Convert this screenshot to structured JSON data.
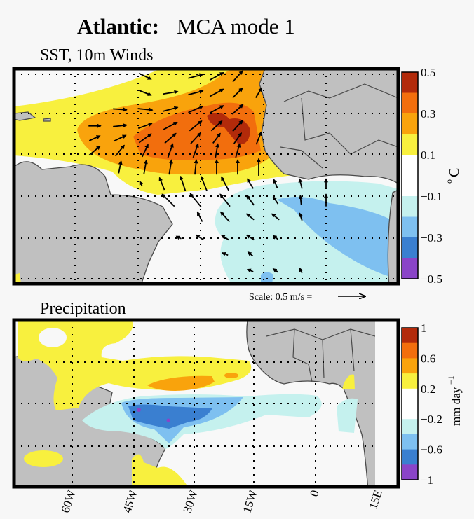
{
  "title": {
    "bold": "Atlantic:",
    "rest": "MCA mode 1"
  },
  "panels": {
    "top": {
      "label": "SST, 10m Winds"
    },
    "bottom": {
      "label": "Precipitation"
    }
  },
  "scale_text": "Scale: 0.5 m/s =",
  "x_ticks": [
    "60W",
    "45W",
    "30W",
    "15W",
    "0",
    "15E"
  ],
  "chart_data": {
    "type": "heatmap",
    "title": "Atlantic: MCA mode 1",
    "colors": [
      "#8a44c8",
      "#3a7fd0",
      "#7ec0f0",
      "#c5f1ee",
      "#ffffff",
      "#ffffff",
      "#f8f03e",
      "#f9a30c",
      "#f26e0d",
      "#b22a0a"
    ],
    "colorbars": [
      {
        "unit_base": "o",
        "unit": "C",
        "ticks": [
          "0.5",
          "0.3",
          "0.1",
          "−0.1",
          "−0.3",
          "−0.5"
        ],
        "range": [
          -0.5,
          0.5
        ]
      },
      {
        "unit_base": "mm day",
        "unit_sup": "−1",
        "ticks": [
          "1",
          "0.6",
          "0.2",
          "−0.2",
          "−0.6",
          "−1"
        ],
        "range": [
          -1,
          1
        ]
      }
    ],
    "wind_scale_ms": 0.5,
    "wind_vectors": [
      [
        -43,
        29,
        0.25,
        -0.12
      ],
      [
        -31,
        29,
        0.3,
        0.08
      ],
      [
        -26,
        29,
        0.28,
        0.15
      ],
      [
        -21,
        29,
        0.2,
        0.22
      ],
      [
        -43,
        25,
        0.25,
        -0.1
      ],
      [
        -37,
        25,
        0.3,
        0.05
      ],
      [
        -31,
        25,
        0.3,
        0.08
      ],
      [
        -26,
        25,
        0.28,
        0.15
      ],
      [
        -21,
        25,
        0.2,
        0.2
      ],
      [
        -16,
        25,
        0.12,
        0.2
      ],
      [
        -49,
        21,
        0.28,
        -0.02
      ],
      [
        -43,
        21,
        0.3,
        -0.03
      ],
      [
        -37,
        21,
        0.3,
        0.08
      ],
      [
        -31,
        21,
        0.3,
        0.13
      ],
      [
        -26,
        21,
        0.28,
        0.15
      ],
      [
        -21,
        21,
        0.22,
        0.2
      ],
      [
        -55,
        17,
        0.25,
        0
      ],
      [
        -49,
        17,
        0.28,
        0.03
      ],
      [
        -43,
        17,
        0.28,
        0.1
      ],
      [
        -37,
        17,
        0.28,
        0.15
      ],
      [
        -31,
        17,
        0.25,
        0.2
      ],
      [
        -26,
        17,
        0.22,
        0.2
      ],
      [
        -21,
        17,
        0.2,
        0.22
      ],
      [
        -55,
        14,
        0.22,
        0.1
      ],
      [
        -49,
        14,
        0.25,
        0.12
      ],
      [
        -43,
        14,
        0.25,
        0.18
      ],
      [
        -37,
        14,
        0.23,
        0.2
      ],
      [
        -31,
        14,
        0.2,
        0.22
      ],
      [
        -26,
        14,
        0.15,
        0.2
      ],
      [
        -21,
        14,
        0.15,
        0.22
      ],
      [
        -16,
        14,
        0.1,
        0.25
      ],
      [
        -55,
        11,
        0.22,
        0.18
      ],
      [
        -49,
        11,
        0.18,
        0.22
      ],
      [
        -43,
        11,
        0.12,
        0.25
      ],
      [
        -37,
        11,
        0.1,
        0.28
      ],
      [
        -31,
        11,
        0.1,
        0.28
      ],
      [
        -26,
        11,
        0.05,
        0.28
      ],
      [
        -21,
        11,
        0.08,
        0.28
      ],
      [
        -49,
        7,
        0.05,
        0.25
      ],
      [
        -43,
        7,
        0.05,
        0.28
      ],
      [
        -37,
        7,
        0.05,
        0.3
      ],
      [
        -31,
        7,
        0.03,
        0.3
      ],
      [
        -26,
        7,
        0,
        0.3
      ],
      [
        -21,
        7,
        0,
        0.3
      ],
      [
        -16,
        7,
        0,
        0.35
      ],
      [
        -44,
        3,
        -0.05,
        0.1
      ],
      [
        -39,
        3,
        -0.1,
        0.25
      ],
      [
        -34,
        3,
        -0.1,
        0.3
      ],
      [
        -29,
        3,
        -0.12,
        0.3
      ],
      [
        -24,
        3,
        -0.15,
        0.28
      ],
      [
        -18,
        3,
        -0.12,
        0.2
      ],
      [
        -12,
        3,
        -0.07,
        0.17
      ],
      [
        -6,
        3,
        -0.05,
        0.2
      ],
      [
        0,
        3,
        0,
        0.2
      ],
      [
        -37.5,
        -1,
        -0.25,
        0.25
      ],
      [
        -31,
        -1,
        -0.22,
        0.27
      ],
      [
        -24,
        -1,
        -0.2,
        0.25
      ],
      [
        -18,
        -1,
        -0.15,
        0.2
      ],
      [
        -12,
        -1,
        -0.1,
        0.15
      ],
      [
        -6,
        -1,
        -0.02,
        0.2
      ],
      [
        0,
        -1,
        0,
        0.25
      ],
      [
        -30,
        -5,
        -0.1,
        0.2
      ],
      [
        -24,
        -5,
        -0.18,
        0.2
      ],
      [
        -18,
        -5,
        -0.15,
        0.12
      ],
      [
        -12,
        -5,
        -0.15,
        0.12
      ],
      [
        -6,
        -5,
        -0.05,
        0.15
      ],
      [
        -35,
        -10,
        -0.1,
        0.05
      ],
      [
        -30,
        -10,
        -0.15,
        0.1
      ],
      [
        -24,
        -10,
        -0.15,
        0.1
      ],
      [
        -18,
        -10,
        -0.15,
        0.1
      ],
      [
        -12,
        -10,
        -0.1,
        0.08
      ],
      [
        -24,
        -14,
        -0.12,
        0.05
      ],
      [
        -18,
        -14,
        -0.1,
        0.08
      ],
      [
        -18,
        -18,
        -0.12,
        0.05
      ],
      [
        -12,
        -18,
        -0.1,
        0.07
      ],
      [
        -6,
        -18,
        -0.05,
        0.1
      ]
    ]
  }
}
